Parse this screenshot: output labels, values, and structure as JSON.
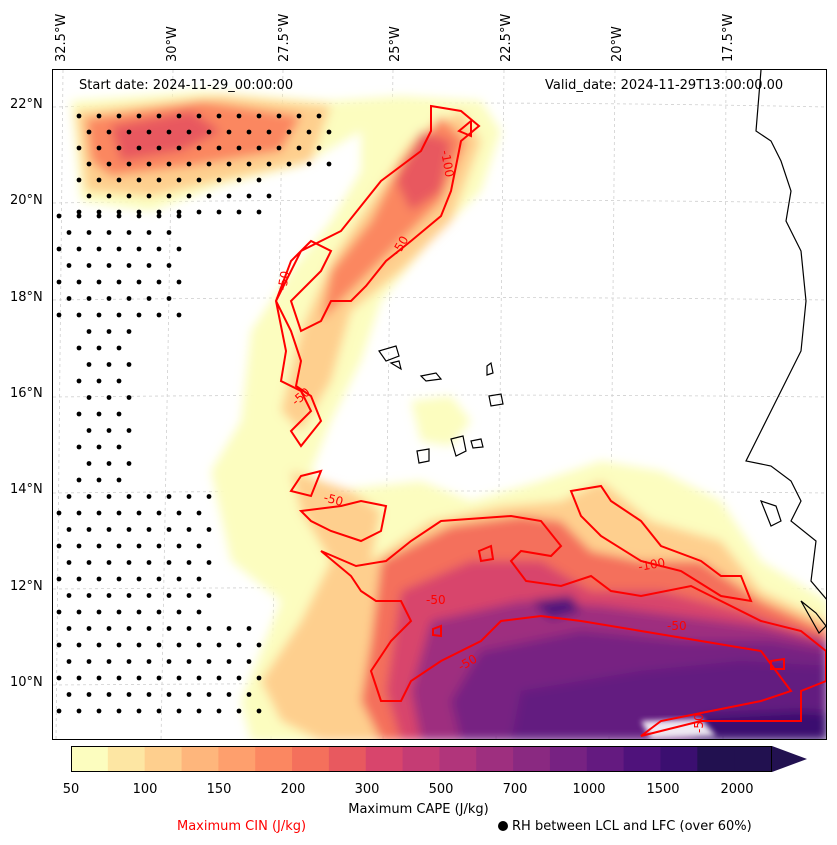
{
  "map": {
    "start_date": "Start date: 2024-11-29_00:00:00",
    "valid_date": "Valid_date: 2024-11-29T13:00:00.00",
    "longitudes": [
      "32.5°W",
      "30°W",
      "27.5°W",
      "25°W",
      "22.5°W",
      "20°W",
      "17.5°W"
    ],
    "latitudes": [
      "22°N",
      "20°N",
      "18°N",
      "16°N",
      "14°N",
      "12°N",
      "10°N"
    ],
    "contour_labels": [
      "-100",
      "-50",
      "-50",
      "-50",
      "-50",
      "-50",
      "-50",
      "-100",
      "-50",
      "-50"
    ]
  },
  "colorbar": {
    "ticks": [
      "50",
      "100",
      "150",
      "200",
      "300",
      "500",
      "700",
      "1000",
      "1500",
      "2000"
    ],
    "title": "Maximum CAPE (J/kg)",
    "colors": [
      "#fcfdbf",
      "#fde6a3",
      "#fecf8e",
      "#feb67c",
      "#fe9f6d",
      "#fb8761",
      "#f4705c",
      "#e8595f",
      "#d8456c",
      "#c53c74",
      "#b1357b",
      "#9e2f7f",
      "#8a2981",
      "#772282",
      "#641a80",
      "#4f127b",
      "#3b0f70",
      "#221150"
    ]
  },
  "legend": {
    "cin_label": "Maximum CIN (J/kg)",
    "rh_label": "RH between LCL and LFC (over 60%)",
    "cin_color": "#ff0000"
  }
}
